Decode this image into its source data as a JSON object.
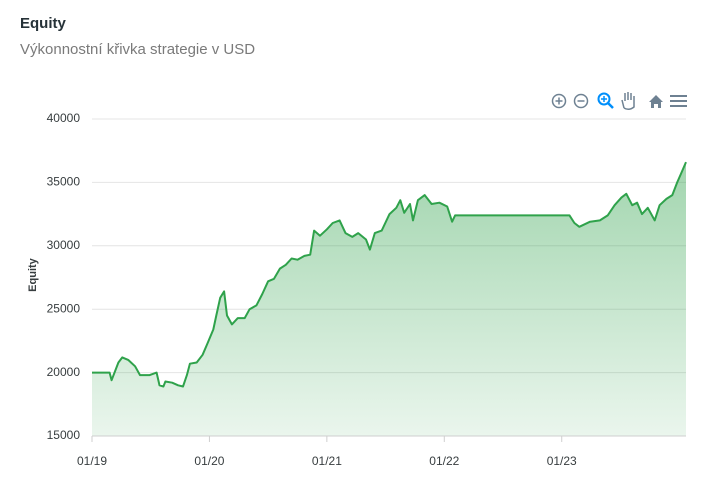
{
  "chart_data": {
    "type": "area",
    "title": "Equity",
    "subtitle": "Výkonnostní křivka strategie v USD",
    "y_label": "Equity",
    "color": "#2fa24b",
    "x": [
      0,
      1.8,
      2.0,
      2.7,
      3.1,
      3.7,
      4.4,
      4.9,
      5.9,
      6.6,
      6.9,
      7.3,
      7.5,
      8.2,
      8.8,
      9.3,
      9.7,
      10.0,
      10.7,
      11.3,
      11.8,
      12.4,
      12.7,
      13.1,
      13.5,
      13.8,
      14.3,
      14.9,
      15.6,
      16.1,
      16.8,
      17.4,
      18.0,
      18.6,
      19.2,
      19.8,
      20.4,
      21.0,
      21.7,
      22.3,
      22.7,
      23.3,
      24.0,
      24.6,
      25.3,
      25.9,
      26.6,
      27.2,
      28.0,
      28.4,
      28.9,
      29.6,
      30.4,
      31.1,
      31.5,
      31.9,
      32.5,
      32.8,
      33.3,
      34.0,
      34.7,
      35.5,
      36.3,
      36.8,
      37.1,
      48.8,
      49.3,
      49.8,
      50.9,
      51.9,
      52.7,
      53.4,
      54.1,
      54.6,
      55.2,
      55.7,
      56.2,
      56.8,
      57.5,
      58.0,
      58.7,
      59.3,
      59.8,
      60.2,
      60.7
    ],
    "values": [
      20000,
      20000,
      19400,
      20800,
      21200,
      21000,
      20500,
      19800,
      19800,
      20000,
      19000,
      18900,
      19300,
      19200,
      19000,
      18900,
      19800,
      20700,
      20800,
      21400,
      22300,
      23400,
      24500,
      25900,
      26400,
      24500,
      23800,
      24300,
      24300,
      25000,
      25300,
      26200,
      27200,
      27400,
      28200,
      28500,
      29000,
      28900,
      29200,
      29300,
      31200,
      30800,
      31300,
      31800,
      32000,
      31000,
      30700,
      31000,
      30500,
      29700,
      31000,
      31200,
      32500,
      33000,
      33600,
      32600,
      33300,
      32000,
      33600,
      34000,
      33300,
      33400,
      33100,
      31900,
      32400,
      32400,
      31800,
      31500,
      31900,
      32000,
      32400,
      33200,
      33800,
      34100,
      33200,
      33400,
      32500,
      33000,
      32000,
      33200,
      33700,
      34000,
      35000,
      35700,
      36600
    ],
    "xlim": [
      0,
      60.7
    ],
    "xticks": [
      {
        "value": 0,
        "label": "01/19"
      },
      {
        "value": 12,
        "label": "01/20"
      },
      {
        "value": 24,
        "label": "01/21"
      },
      {
        "value": 36,
        "label": "01/22"
      },
      {
        "value": 48,
        "label": "01/23"
      }
    ],
    "ylim": [
      15000,
      40000
    ],
    "yticks": [
      15000,
      20000,
      25000,
      30000,
      35000,
      40000
    ],
    "grid": true
  }
}
